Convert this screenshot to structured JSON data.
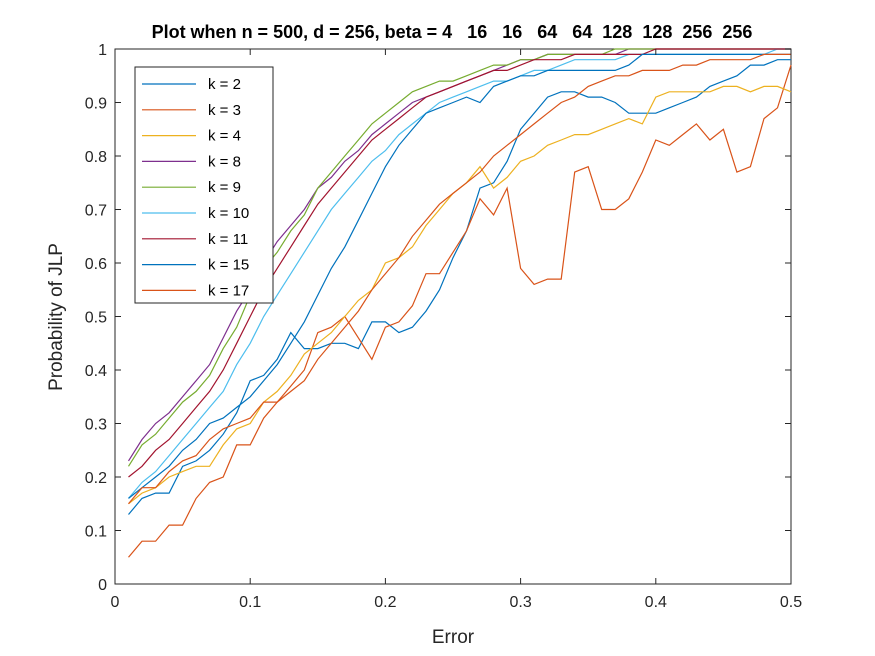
{
  "chart_data": {
    "type": "line",
    "title": "Plot when n = 500, d = 256, beta = 4   16   16   64   64  128  128  256  256",
    "xlabel": "Error",
    "ylabel": "Probability of JLP",
    "xlim": [
      0,
      0.5
    ],
    "ylim": [
      0,
      1
    ],
    "xticks": [
      "0",
      "0.1",
      "0.2",
      "0.3",
      "0.4",
      "0.5"
    ],
    "yticks": [
      "0",
      "0.1",
      "0.2",
      "0.3",
      "0.4",
      "0.5",
      "0.6",
      "0.7",
      "0.8",
      "0.9",
      "1"
    ],
    "grid": false,
    "legend_position": "top-left",
    "x": [
      0.01,
      0.02,
      0.03,
      0.04,
      0.05,
      0.06,
      0.07,
      0.08,
      0.09,
      0.1,
      0.11,
      0.12,
      0.13,
      0.14,
      0.15,
      0.16,
      0.17,
      0.18,
      0.19,
      0.2,
      0.21,
      0.22,
      0.23,
      0.24,
      0.25,
      0.26,
      0.27,
      0.28,
      0.29,
      0.3,
      0.31,
      0.32,
      0.33,
      0.34,
      0.35,
      0.36,
      0.37,
      0.38,
      0.39,
      0.4,
      0.41,
      0.42,
      0.43,
      0.44,
      0.45,
      0.46,
      0.47,
      0.48,
      0.49,
      0.5
    ],
    "series": [
      {
        "name": "k = 2",
        "color": "#0072BD",
        "values": [
          0.13,
          0.16,
          0.17,
          0.17,
          0.22,
          0.23,
          0.25,
          0.28,
          0.32,
          0.38,
          0.39,
          0.42,
          0.47,
          0.44,
          0.44,
          0.45,
          0.45,
          0.44,
          0.49,
          0.49,
          0.47,
          0.48,
          0.51,
          0.55,
          0.61,
          0.66,
          0.74,
          0.75,
          0.79,
          0.85,
          0.88,
          0.91,
          0.92,
          0.92,
          0.91,
          0.91,
          0.9,
          0.88,
          0.88,
          0.88,
          0.89,
          0.9,
          0.91,
          0.93,
          0.94,
          0.95,
          0.97,
          0.97,
          0.98,
          0.98
        ]
      },
      {
        "name": "k = 3",
        "color": "#D95319",
        "values": [
          0.05,
          0.08,
          0.08,
          0.11,
          0.11,
          0.16,
          0.19,
          0.2,
          0.26,
          0.26,
          0.31,
          0.34,
          0.37,
          0.4,
          0.47,
          0.48,
          0.5,
          0.46,
          0.42,
          0.48,
          0.49,
          0.52,
          0.58,
          0.58,
          0.62,
          0.66,
          0.72,
          0.69,
          0.74,
          0.59,
          0.56,
          0.57,
          0.57,
          0.77,
          0.78,
          0.7,
          0.7,
          0.72,
          0.77,
          0.83,
          0.82,
          0.84,
          0.86,
          0.83,
          0.85,
          0.77,
          0.78,
          0.87,
          0.89,
          0.97
        ]
      },
      {
        "name": "k = 4",
        "color": "#EDB120",
        "values": [
          0.15,
          0.17,
          0.18,
          0.2,
          0.21,
          0.22,
          0.22,
          0.26,
          0.29,
          0.3,
          0.34,
          0.36,
          0.39,
          0.43,
          0.45,
          0.47,
          0.5,
          0.53,
          0.55,
          0.6,
          0.61,
          0.63,
          0.67,
          0.7,
          0.73,
          0.75,
          0.78,
          0.74,
          0.76,
          0.79,
          0.8,
          0.82,
          0.83,
          0.84,
          0.84,
          0.85,
          0.86,
          0.87,
          0.86,
          0.91,
          0.92,
          0.92,
          0.92,
          0.92,
          0.93,
          0.93,
          0.92,
          0.93,
          0.93,
          0.92
        ]
      },
      {
        "name": "k = 8",
        "color": "#7E2F8E",
        "values": [
          0.23,
          0.27,
          0.3,
          0.32,
          0.35,
          0.38,
          0.41,
          0.46,
          0.51,
          0.55,
          0.6,
          0.64,
          0.67,
          0.7,
          0.74,
          0.76,
          0.79,
          0.81,
          0.84,
          0.86,
          0.88,
          0.9,
          0.91,
          0.92,
          0.93,
          0.94,
          0.95,
          0.96,
          0.97,
          0.98,
          0.98,
          0.99,
          0.99,
          0.99,
          0.99,
          0.99,
          0.99,
          1.0,
          1.0,
          1.0,
          1.0,
          1.0,
          1.0,
          1.0,
          1.0,
          1.0,
          1.0,
          1.0,
          1.0,
          1.0
        ]
      },
      {
        "name": "k = 9",
        "color": "#77AC30",
        "values": [
          0.22,
          0.26,
          0.28,
          0.31,
          0.34,
          0.36,
          0.39,
          0.44,
          0.48,
          0.54,
          0.59,
          0.62,
          0.66,
          0.69,
          0.74,
          0.77,
          0.8,
          0.83,
          0.86,
          0.88,
          0.9,
          0.92,
          0.93,
          0.94,
          0.94,
          0.95,
          0.96,
          0.97,
          0.97,
          0.98,
          0.98,
          0.99,
          0.99,
          0.99,
          0.99,
          0.99,
          1.0,
          1.0,
          1.0,
          1.0,
          1.0,
          1.0,
          1.0,
          1.0,
          1.0,
          1.0,
          1.0,
          1.0,
          1.0,
          1.0
        ]
      },
      {
        "name": "k = 10",
        "color": "#4DBEEE",
        "values": [
          0.16,
          0.19,
          0.21,
          0.24,
          0.27,
          0.3,
          0.33,
          0.36,
          0.41,
          0.45,
          0.5,
          0.54,
          0.58,
          0.62,
          0.66,
          0.7,
          0.73,
          0.76,
          0.79,
          0.81,
          0.84,
          0.86,
          0.88,
          0.9,
          0.91,
          0.92,
          0.93,
          0.94,
          0.94,
          0.95,
          0.96,
          0.96,
          0.97,
          0.98,
          0.98,
          0.98,
          0.98,
          0.99,
          0.99,
          0.99,
          0.99,
          0.99,
          0.99,
          0.99,
          0.99,
          0.99,
          0.99,
          0.99,
          1.0,
          1.0
        ]
      },
      {
        "name": "k = 11",
        "color": "#A2142F",
        "values": [
          0.2,
          0.22,
          0.25,
          0.27,
          0.3,
          0.33,
          0.36,
          0.4,
          0.45,
          0.5,
          0.55,
          0.59,
          0.63,
          0.67,
          0.71,
          0.74,
          0.77,
          0.8,
          0.83,
          0.85,
          0.87,
          0.89,
          0.91,
          0.92,
          0.93,
          0.94,
          0.95,
          0.96,
          0.96,
          0.97,
          0.98,
          0.98,
          0.98,
          0.99,
          0.99,
          0.99,
          0.99,
          0.99,
          0.99,
          1.0,
          1.0,
          1.0,
          1.0,
          1.0,
          1.0,
          1.0,
          1.0,
          1.0,
          1.0,
          1.0
        ]
      },
      {
        "name": "k = 15",
        "color": "#0072BD",
        "values": [
          0.16,
          0.18,
          0.2,
          0.22,
          0.25,
          0.27,
          0.3,
          0.31,
          0.33,
          0.35,
          0.38,
          0.41,
          0.45,
          0.49,
          0.54,
          0.59,
          0.63,
          0.68,
          0.73,
          0.78,
          0.82,
          0.85,
          0.88,
          0.89,
          0.9,
          0.91,
          0.9,
          0.93,
          0.94,
          0.95,
          0.95,
          0.96,
          0.96,
          0.96,
          0.96,
          0.96,
          0.96,
          0.97,
          0.99,
          0.99,
          0.99,
          0.99,
          0.99,
          0.99,
          0.99,
          0.99,
          0.99,
          0.99,
          0.99,
          0.99
        ]
      },
      {
        "name": "k = 17",
        "color": "#D95319",
        "values": [
          0.15,
          0.18,
          0.18,
          0.21,
          0.23,
          0.24,
          0.27,
          0.29,
          0.3,
          0.31,
          0.34,
          0.34,
          0.36,
          0.38,
          0.42,
          0.45,
          0.48,
          0.51,
          0.55,
          0.58,
          0.61,
          0.65,
          0.68,
          0.71,
          0.73,
          0.75,
          0.77,
          0.8,
          0.82,
          0.84,
          0.86,
          0.88,
          0.9,
          0.91,
          0.93,
          0.94,
          0.95,
          0.95,
          0.96,
          0.96,
          0.96,
          0.97,
          0.97,
          0.98,
          0.98,
          0.98,
          0.98,
          0.99,
          0.99,
          0.99
        ]
      }
    ]
  }
}
